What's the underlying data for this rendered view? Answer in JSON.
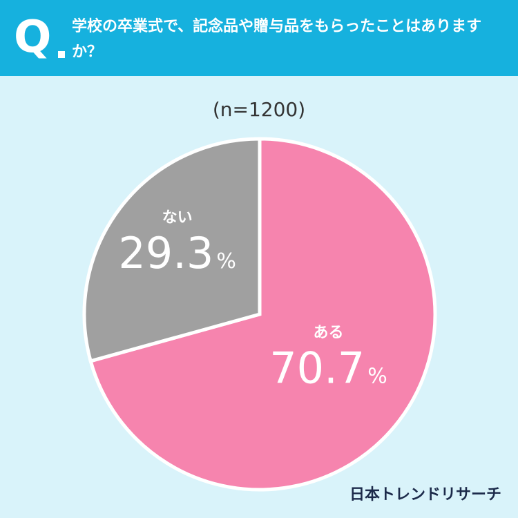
{
  "header": {
    "q_label": "Q",
    "question": "学校の卒業式で、記念品や贈与品をもらったことはありますか？"
  },
  "sample_size": "(n=1200)",
  "brand": "日本トレンドリサーチ",
  "colors": {
    "header_bg": "#16b1de",
    "background": "#d9f3fa",
    "yes_slice": "#f684ae",
    "no_slice": "#a0a0a0"
  },
  "chart_data": {
    "type": "pie",
    "title": "",
    "categories": [
      "ある",
      "ない"
    ],
    "values": [
      70.7,
      29.3
    ],
    "unit": "%",
    "colors": [
      "#f684ae",
      "#a0a0a0"
    ],
    "start": "12 o'clock",
    "direction": "clockwise"
  }
}
